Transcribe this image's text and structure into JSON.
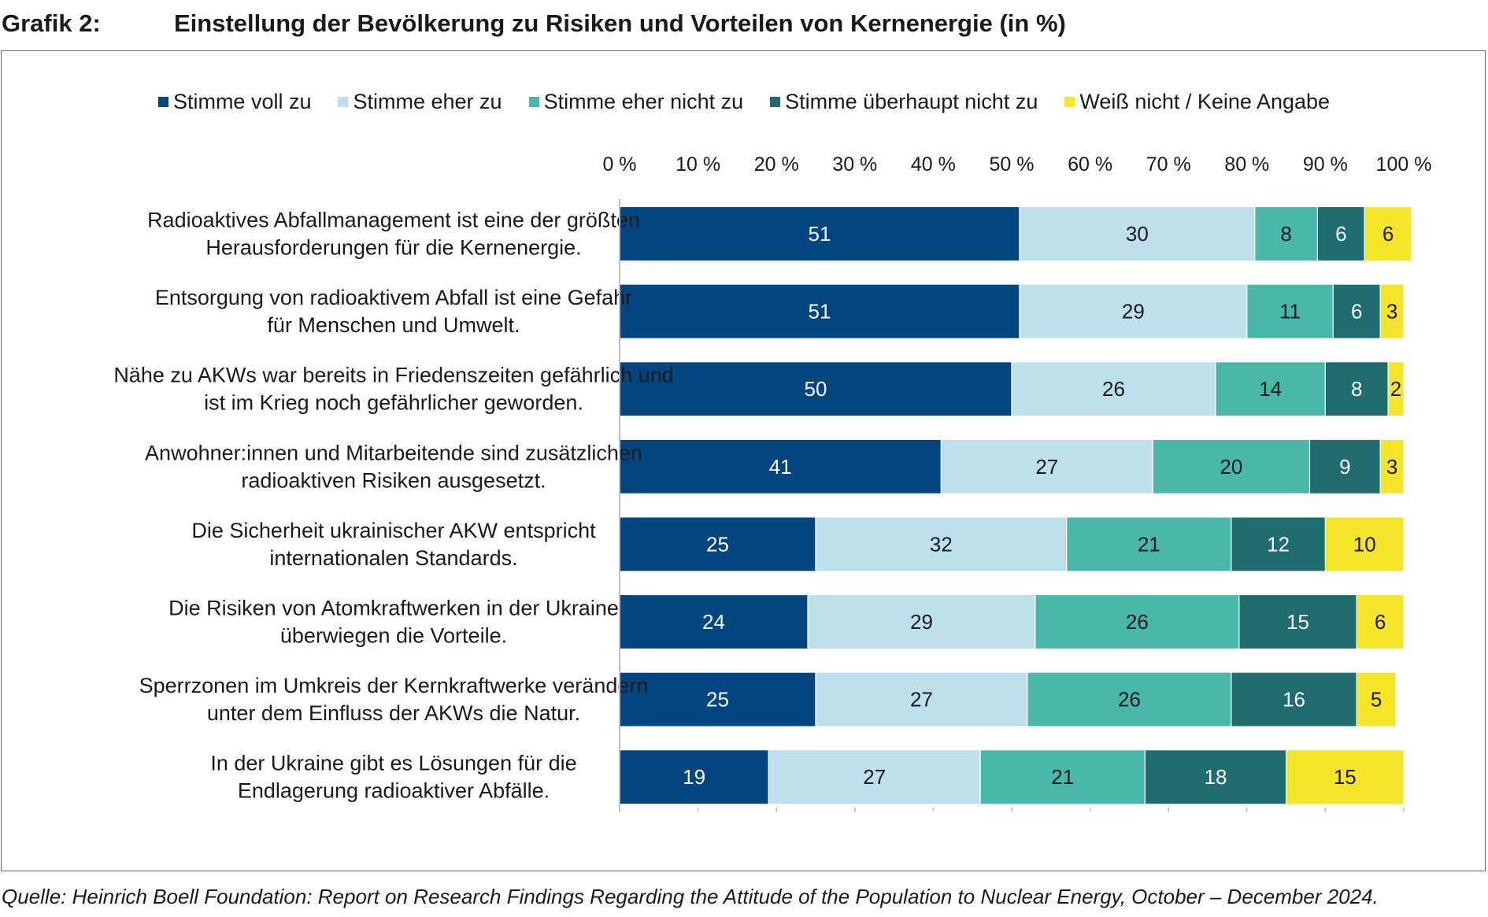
{
  "header": {
    "label": "Grafik 2:",
    "title": "Einstellung der Bevölkerung zu Risiken und Vorteilen von Kernenergie (in %)"
  },
  "source": "Quelle: Heinrich Boell Foundation: Report on Research Findings Regarding the Attitude of the Population to Nuclear Energy, October – December 2024.",
  "chart_data": {
    "type": "bar",
    "orientation": "horizontal",
    "stacked": true,
    "title": "Einstellung der Bevölkerung zu Risiken und Vorteilen von Kernenergie (in %)",
    "xlim": [
      0,
      100
    ],
    "x_ticks": [
      "0 %",
      "10 %",
      "20 %",
      "30 %",
      "40 %",
      "50 %",
      "60 %",
      "70 %",
      "80 %",
      "90 %",
      "100 %"
    ],
    "legend_position": "top-center",
    "categories": [
      [
        "Radioaktives Abfallmanagement ist eine der größten",
        "Herausforderungen für die Kernenergie."
      ],
      [
        "Entsorgung von radioaktivem Abfall ist eine Gefahr",
        "für Menschen und Umwelt."
      ],
      [
        "Nähe zu AKWs war bereits in Friedenszeiten gefährlich und",
        "ist im Krieg noch gefährlicher geworden."
      ],
      [
        "Anwohner:innen und Mitarbeitende sind zusätzlichen",
        "radioaktiven Risiken ausgesetzt."
      ],
      [
        "Die Sicherheit ukrainischer AKW entspricht",
        "internationalen Standards."
      ],
      [
        "Die Risiken von Atomkraftwerken in der Ukraine",
        "überwiegen die Vorteile."
      ],
      [
        "Sperrzonen im Umkreis der Kernkraftwerke verändern",
        "unter dem Einfluss der AKWs die Natur."
      ],
      [
        "In der Ukraine gibt es Lösungen für die",
        "Endlagerung radioaktiver Abfälle."
      ]
    ],
    "series": [
      {
        "name": "Stimme voll zu",
        "color": "#03457f",
        "label_color": "#ffffff",
        "values": [
          51,
          51,
          50,
          41,
          25,
          24,
          25,
          19
        ]
      },
      {
        "name": "Stimme eher zu",
        "color": "#bde0ec",
        "label_color": "#1a1a1a",
        "values": [
          30,
          29,
          26,
          27,
          32,
          29,
          27,
          27
        ]
      },
      {
        "name": "Stimme eher nicht zu",
        "color": "#49b8ab",
        "label_color": "#1a1a1a",
        "values": [
          8,
          11,
          14,
          20,
          21,
          26,
          26,
          21
        ]
      },
      {
        "name": "Stimme überhaupt nicht zu",
        "color": "#1f6b6e",
        "label_color": "#ffffff",
        "values": [
          6,
          6,
          8,
          9,
          12,
          15,
          16,
          18
        ]
      },
      {
        "name": "Weiß nicht / Keine Angabe",
        "color": "#f4e52a",
        "label_color": "#1a1a1a",
        "values": [
          6,
          3,
          2,
          3,
          10,
          6,
          5,
          15
        ]
      }
    ]
  }
}
